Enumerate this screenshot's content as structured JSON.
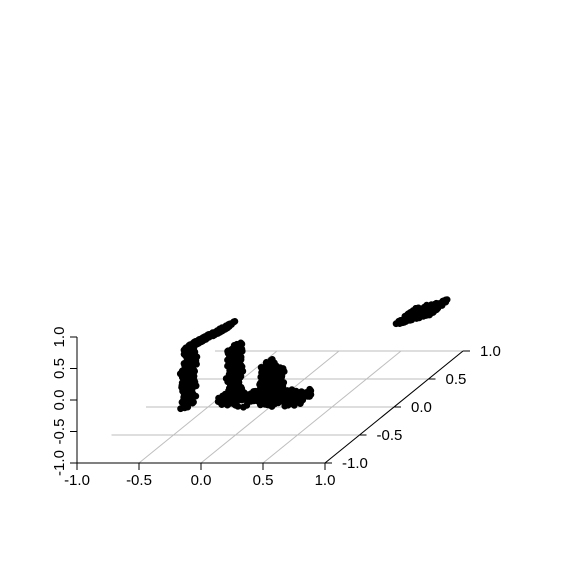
{
  "chart_data": {
    "type": "scatter",
    "projection": "3d",
    "title": "",
    "xlabel": "",
    "ylabel": "",
    "zlabel": "",
    "xlim": [
      -1.0,
      1.0
    ],
    "ylim": [
      -1.0,
      1.0
    ],
    "zlim": [
      -1.0,
      1.0
    ],
    "grid": true,
    "marker_color": "#000000",
    "grid_color": "#bebebe",
    "x_ticks": [
      "-1.0",
      "-0.5",
      "0.0",
      "0.5",
      "1.0"
    ],
    "y_ticks": [
      "-1.0",
      "-0.5",
      "0.0",
      "0.5",
      "1.0"
    ],
    "z_ticks": [
      "-1.0",
      "-0.5",
      "0.0",
      "0.5",
      "1.0"
    ],
    "clusters": [
      {
        "shape": "vertical-bar",
        "x": [
          -0.17,
          -0.13
        ],
        "y": [
          -1.0,
          -0.82
        ],
        "z": [
          -0.18,
          0.75
        ]
      },
      {
        "shape": "diagonal-bar",
        "x": [
          -0.17,
          0.2
        ],
        "y": [
          -1.0,
          -0.82
        ],
        "z": [
          0.75,
          1.12
        ]
      },
      {
        "shape": "vertical-bar",
        "x": [
          0.2,
          0.24
        ],
        "y": [
          -1.0,
          -0.82
        ],
        "z": [
          0.02,
          0.78
        ]
      },
      {
        "shape": "floor-bar",
        "x": [
          0.12,
          0.8
        ],
        "y": [
          -1.0,
          -0.82
        ],
        "z": [
          -0.12,
          0.04
        ]
      },
      {
        "shape": "vertical-bar",
        "x": [
          0.46,
          0.52
        ],
        "y": [
          -1.0,
          -0.82
        ],
        "z": [
          0.02,
          0.5
        ]
      },
      {
        "shape": "small-vertical",
        "x": [
          0.54,
          0.58
        ],
        "y": [
          -1.0,
          -0.82
        ],
        "z": [
          0.02,
          0.42
        ]
      },
      {
        "shape": "floating-bar",
        "x": [
          1.05,
          1.35
        ],
        "y": [
          -0.1,
          0.2
        ],
        "z": [
          0.38,
          0.55
        ]
      }
    ]
  }
}
